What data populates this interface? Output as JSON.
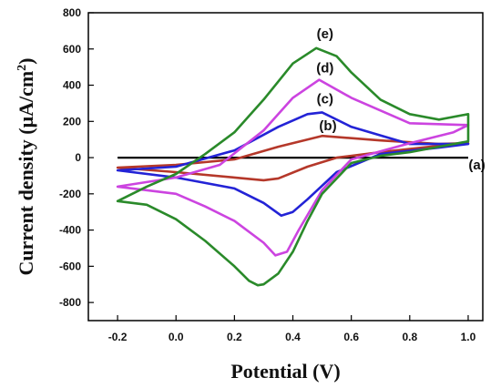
{
  "chart_data": {
    "type": "line",
    "title": "",
    "xlabel": "Potential (V)",
    "ylabel": "Current density (μA/cm²)",
    "ylabel_main": "Current density (μA/cm",
    "ylabel_sup": "2",
    "ylabel_tail": ")",
    "xlim": [
      -0.3,
      1.05
    ],
    "ylim": [
      -900,
      800
    ],
    "x_ticks": [
      -0.2,
      0.0,
      0.2,
      0.4,
      0.6,
      0.8,
      1.0
    ],
    "x_tick_labels": [
      "-0.2",
      "0.0",
      "0.2",
      "0.4",
      "0.6",
      "0.8",
      "1.0"
    ],
    "y_ticks": [
      -800,
      -600,
      -400,
      -200,
      0,
      200,
      400,
      600,
      800
    ],
    "y_tick_labels": [
      "-800",
      "-600",
      "-400",
      "-200",
      "0",
      "200",
      "400",
      "600",
      "800"
    ],
    "grid": false,
    "legend": "none",
    "series": [
      {
        "name": "(a)",
        "color": "#000000",
        "x": [
          -0.2,
          1.0
        ],
        "y": [
          0,
          0
        ]
      },
      {
        "name": "(b)",
        "color": "#b5382a",
        "x": [
          -0.2,
          0.0,
          0.2,
          0.35,
          0.5,
          0.7,
          0.9,
          1.0,
          0.9,
          0.7,
          0.55,
          0.45,
          0.35,
          0.3,
          0.2,
          0.0,
          -0.2
        ],
        "y": [
          -55,
          -40,
          -10,
          60,
          120,
          95,
          75,
          80,
          65,
          30,
          0,
          -50,
          -115,
          -125,
          -110,
          -80,
          -55
        ]
      },
      {
        "name": "(c)",
        "color": "#2323d6",
        "x": [
          -0.2,
          0.0,
          0.2,
          0.35,
          0.45,
          0.5,
          0.6,
          0.8,
          1.0,
          0.9,
          0.7,
          0.55,
          0.45,
          0.4,
          0.36,
          0.3,
          0.2,
          0.0,
          -0.2
        ],
        "y": [
          -70,
          -50,
          40,
          170,
          240,
          250,
          170,
          75,
          75,
          55,
          20,
          -80,
          -230,
          -300,
          -320,
          -250,
          -170,
          -110,
          -70
        ]
      },
      {
        "name": "(d)",
        "color": "#cc44e0",
        "x": [
          -0.2,
          0.0,
          0.15,
          0.3,
          0.4,
          0.49,
          0.6,
          0.8,
          1.0,
          0.95,
          0.8,
          0.6,
          0.5,
          0.42,
          0.38,
          0.34,
          0.3,
          0.2,
          0.1,
          0.0,
          -0.2
        ],
        "y": [
          -160,
          -110,
          -40,
          150,
          330,
          430,
          330,
          190,
          180,
          140,
          80,
          -10,
          -180,
          -400,
          -520,
          -540,
          -470,
          -350,
          -270,
          -200,
          -160
        ]
      },
      {
        "name": "(e)",
        "color": "#2a8a2a",
        "x": [
          -0.2,
          -0.1,
          0.0,
          0.1,
          0.2,
          0.3,
          0.4,
          0.48,
          0.55,
          0.6,
          0.7,
          0.8,
          0.9,
          1.0,
          1.0,
          0.9,
          0.8,
          0.7,
          0.6,
          0.5,
          0.45,
          0.4,
          0.35,
          0.3,
          0.28,
          0.25,
          0.2,
          0.1,
          0.0,
          -0.1,
          -0.2
        ],
        "y": [
          -240,
          -160,
          -90,
          20,
          140,
          320,
          520,
          605,
          560,
          470,
          320,
          240,
          210,
          240,
          90,
          60,
          30,
          10,
          -30,
          -200,
          -350,
          -520,
          -640,
          -700,
          -705,
          -680,
          -600,
          -460,
          -340,
          -260,
          -240
        ]
      }
    ],
    "annotations": [
      {
        "text": "(a)",
        "x": 1.03,
        "y": -65
      },
      {
        "text": "(b)",
        "x": 0.52,
        "y": 150
      },
      {
        "text": "(c)",
        "x": 0.51,
        "y": 300
      },
      {
        "text": "(d)",
        "x": 0.51,
        "y": 470
      },
      {
        "text": "(e)",
        "x": 0.51,
        "y": 660
      }
    ]
  }
}
